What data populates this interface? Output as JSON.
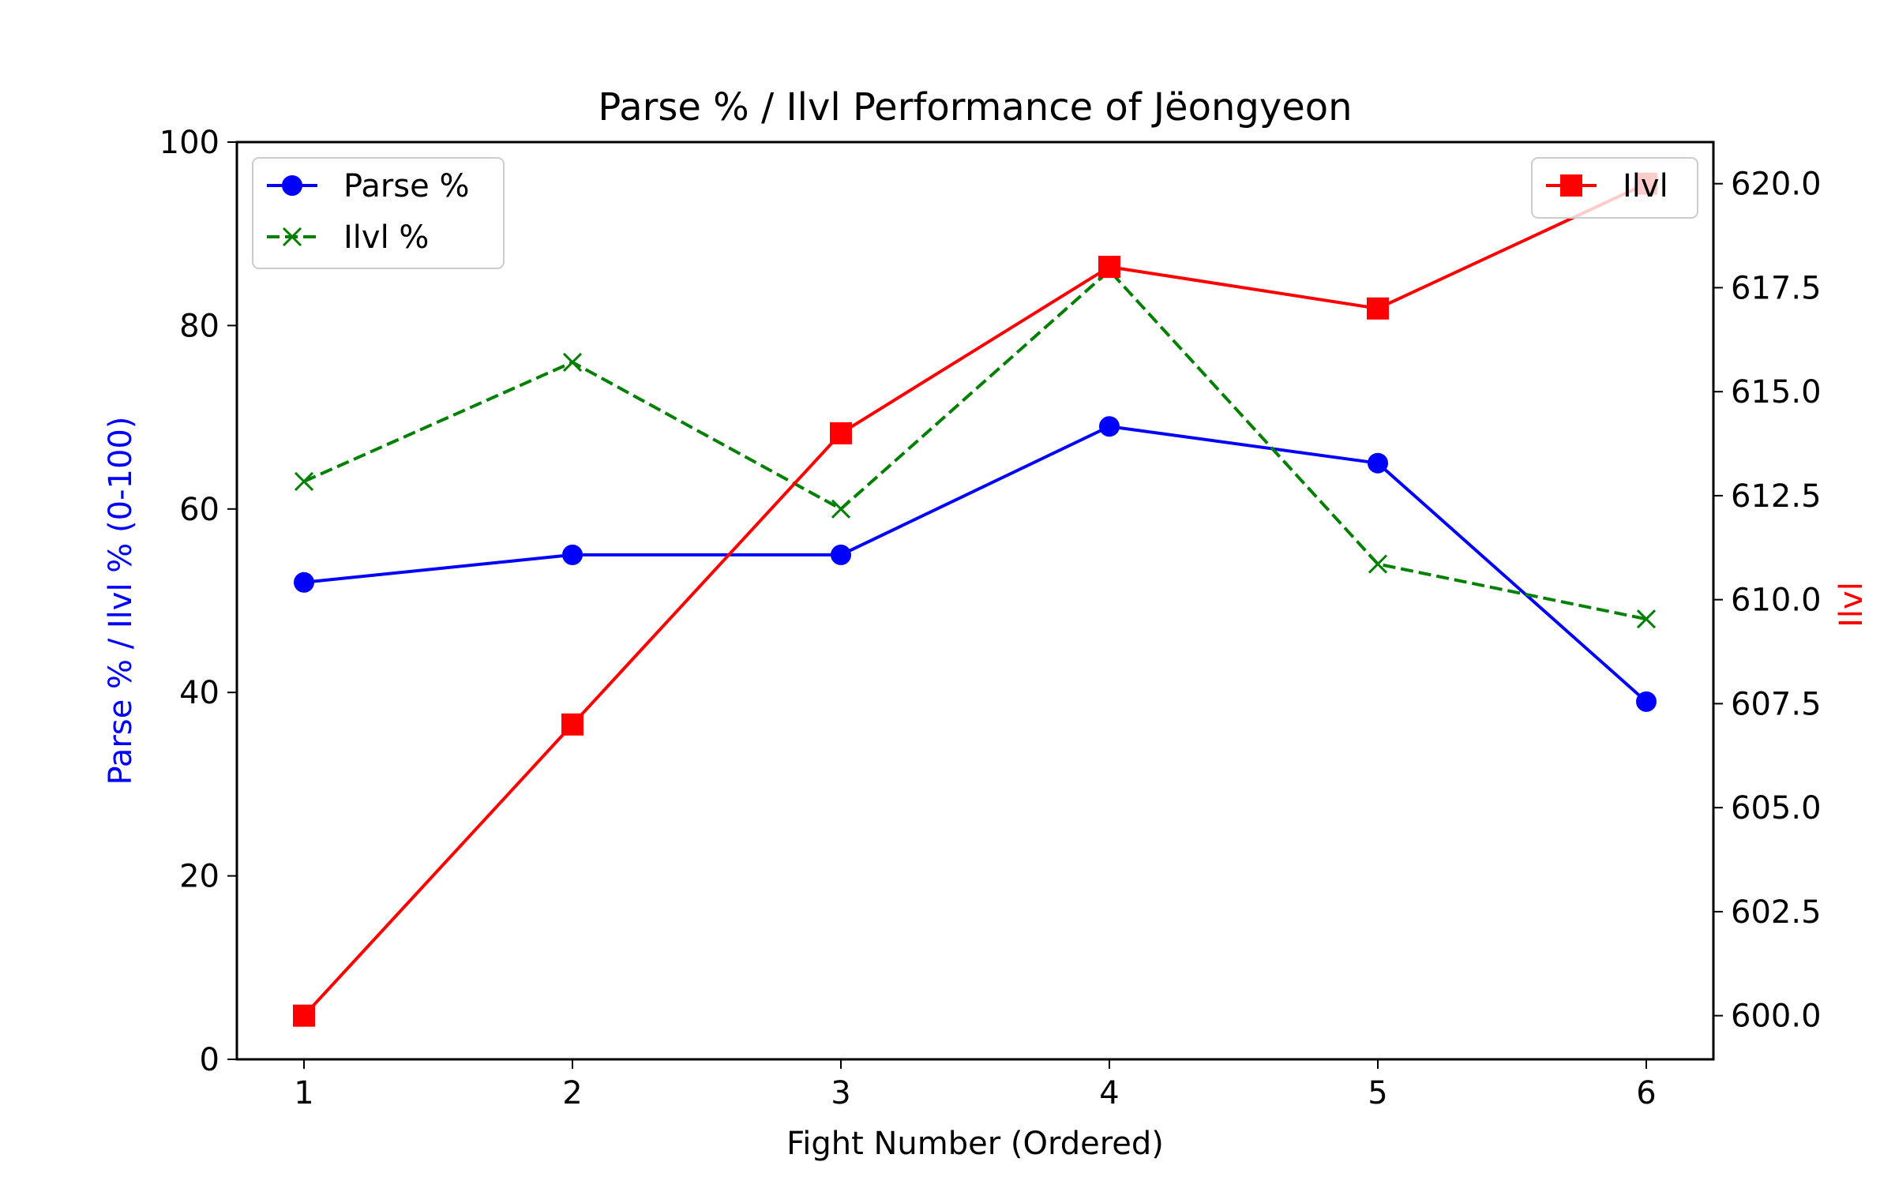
{
  "chart_data": {
    "type": "line",
    "title": "Parse % / Ilvl Performance of Jëongyeon",
    "xlabel": "Fight Number (Ordered)",
    "ylabel_left": "Parse % / Ilvl % (0-100)",
    "ylabel_right": "Ilvl",
    "x": [
      1,
      2,
      3,
      4,
      5,
      6
    ],
    "x_ticks": [
      "1",
      "2",
      "3",
      "4",
      "5",
      "6"
    ],
    "xlim": [
      0.75,
      6.25
    ],
    "ylim_left": [
      0,
      100
    ],
    "ylim_right": [
      598.95,
      621.0
    ],
    "y_ticks_left": [
      "0",
      "20",
      "40",
      "60",
      "80",
      "100"
    ],
    "y_ticks_right": [
      "600.0",
      "602.5",
      "605.0",
      "607.5",
      "610.0",
      "612.5",
      "615.0",
      "617.5",
      "620.0"
    ],
    "series": [
      {
        "name": "Parse %",
        "axis": "left",
        "color": "#0000ff",
        "linestyle": "solid",
        "marker": "circle",
        "values": [
          52,
          55,
          55,
          69,
          65,
          39
        ]
      },
      {
        "name": "Ilvl %",
        "axis": "left",
        "color": "#008000",
        "linestyle": "dashed",
        "marker": "x",
        "values": [
          63,
          76,
          60,
          86,
          54,
          48
        ]
      },
      {
        "name": "Ilvl",
        "axis": "right",
        "color": "#ff0000",
        "linestyle": "solid",
        "marker": "square",
        "values": [
          600,
          607,
          614,
          618,
          617,
          620
        ]
      }
    ],
    "legend_left": {
      "placement": "upper-left",
      "entries": [
        "Parse %",
        "Ilvl %"
      ]
    },
    "legend_right": {
      "placement": "upper-right",
      "entries": [
        "Ilvl"
      ]
    },
    "grid": false,
    "label_colors": {
      "left": "#0000ff",
      "right": "#ff0000"
    }
  }
}
